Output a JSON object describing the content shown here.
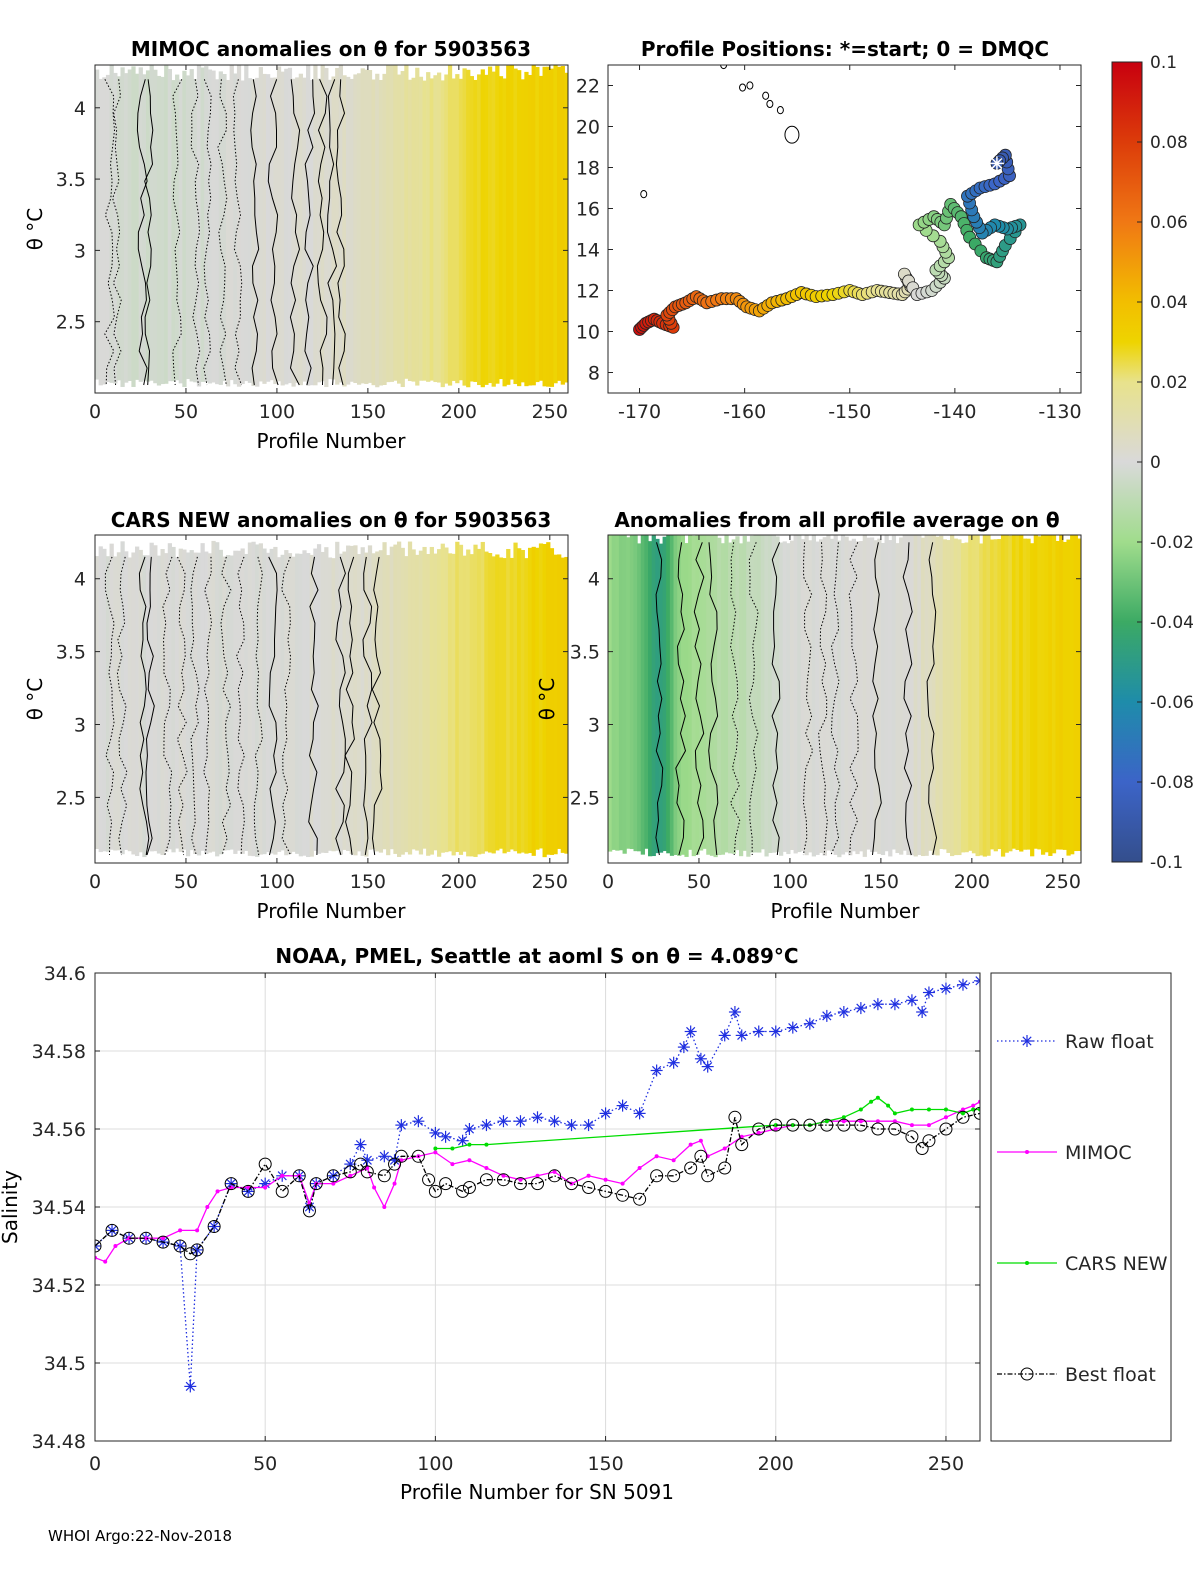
{
  "footer": {
    "credit": "WHOI Argo:22-Nov-2018"
  },
  "colorbar": {
    "ticks": [
      "0.1",
      "0.08",
      "0.06",
      "0.04",
      "0.02",
      "0",
      "-0.02",
      "-0.04",
      "-0.06",
      "-0.08",
      "-0.1"
    ],
    "range": [
      -0.1,
      0.1
    ]
  },
  "chart_data": [
    {
      "id": "mimoc",
      "type": "heatmap",
      "title": "MIMOC anomalies on θ  for 5903563",
      "xlabel": "Profile Number",
      "ylabel": "θ °C",
      "xlim": [
        0,
        260
      ],
      "ylim": [
        2.0,
        4.3
      ],
      "xticks": [
        "0",
        "50",
        "100",
        "150",
        "200",
        "250"
      ],
      "yticks": [
        "4",
        "3.5",
        "3",
        "2.5"
      ],
      "anomaly_by_profile": {
        "x": [
          0,
          30,
          80,
          120,
          150,
          175,
          200,
          220,
          260
        ],
        "v": [
          0.0,
          -0.004,
          0.0,
          0.002,
          0.006,
          0.016,
          0.024,
          0.03,
          0.032
        ]
      }
    },
    {
      "id": "positions",
      "type": "scatter",
      "title": "Profile Positions: *=start; 0 = DMQC",
      "xlabel": "",
      "ylabel": "",
      "xlim": [
        -173,
        -128
      ],
      "ylim": [
        7,
        23
      ],
      "xticks": [
        "-170",
        "-160",
        "-150",
        "-140",
        "-130"
      ],
      "yticks": [
        "22",
        "20",
        "18",
        "16",
        "14",
        "12",
        "10",
        "8"
      ],
      "start": {
        "lon": -136,
        "lat": 18.2
      },
      "track": [
        {
          "lon": -136.0,
          "lat": 18.2
        },
        {
          "lon": -135.2,
          "lat": 18.6
        },
        {
          "lon": -134.8,
          "lat": 17.6
        },
        {
          "lon": -136.2,
          "lat": 17.2
        },
        {
          "lon": -137.6,
          "lat": 17.0
        },
        {
          "lon": -138.8,
          "lat": 16.6
        },
        {
          "lon": -138.2,
          "lat": 15.6
        },
        {
          "lon": -137.4,
          "lat": 14.8
        },
        {
          "lon": -136.2,
          "lat": 15.2
        },
        {
          "lon": -135.0,
          "lat": 15.0
        },
        {
          "lon": -133.8,
          "lat": 15.2
        },
        {
          "lon": -135.2,
          "lat": 14.2
        },
        {
          "lon": -136.0,
          "lat": 13.4
        },
        {
          "lon": -137.0,
          "lat": 13.6
        },
        {
          "lon": -138.6,
          "lat": 14.6
        },
        {
          "lon": -139.4,
          "lat": 15.6
        },
        {
          "lon": -140.4,
          "lat": 16.2
        },
        {
          "lon": -141.0,
          "lat": 15.2
        },
        {
          "lon": -142.0,
          "lat": 15.6
        },
        {
          "lon": -143.4,
          "lat": 15.2
        },
        {
          "lon": -141.4,
          "lat": 14.4
        },
        {
          "lon": -140.6,
          "lat": 13.6
        },
        {
          "lon": -141.8,
          "lat": 13.0
        },
        {
          "lon": -141.0,
          "lat": 12.6
        },
        {
          "lon": -142.2,
          "lat": 12.0
        },
        {
          "lon": -143.6,
          "lat": 11.8
        },
        {
          "lon": -144.8,
          "lat": 12.8
        },
        {
          "lon": -144.2,
          "lat": 12.2
        },
        {
          "lon": -145.0,
          "lat": 11.8
        },
        {
          "lon": -146.2,
          "lat": 11.9
        },
        {
          "lon": -147.4,
          "lat": 12.0
        },
        {
          "lon": -148.8,
          "lat": 11.8
        },
        {
          "lon": -150.0,
          "lat": 12.0
        },
        {
          "lon": -151.6,
          "lat": 11.8
        },
        {
          "lon": -153.2,
          "lat": 11.7
        },
        {
          "lon": -154.6,
          "lat": 11.9
        },
        {
          "lon": -156.0,
          "lat": 11.6
        },
        {
          "lon": -157.4,
          "lat": 11.4
        },
        {
          "lon": -158.6,
          "lat": 11.0
        },
        {
          "lon": -159.8,
          "lat": 11.2
        },
        {
          "lon": -160.8,
          "lat": 11.6
        },
        {
          "lon": -162.2,
          "lat": 11.6
        },
        {
          "lon": -163.6,
          "lat": 11.4
        },
        {
          "lon": -164.6,
          "lat": 11.7
        },
        {
          "lon": -165.6,
          "lat": 11.4
        },
        {
          "lon": -166.6,
          "lat": 11.2
        },
        {
          "lon": -167.4,
          "lat": 10.8
        },
        {
          "lon": -166.8,
          "lat": 10.2
        },
        {
          "lon": -167.8,
          "lat": 10.4
        },
        {
          "lon": -168.6,
          "lat": 10.6
        },
        {
          "lon": -169.4,
          "lat": 10.4
        },
        {
          "lon": -170.0,
          "lat": 10.1
        }
      ],
      "islands": [
        {
          "lon": -155.5,
          "lat": 19.6
        },
        {
          "lon": -156.6,
          "lat": 20.8
        },
        {
          "lon": -157.6,
          "lat": 21.1
        },
        {
          "lon": -158.0,
          "lat": 21.5
        },
        {
          "lon": -159.5,
          "lat": 22.0
        },
        {
          "lon": -160.2,
          "lat": 21.9
        },
        {
          "lon": -162.0,
          "lat": 23.0
        },
        {
          "lon": -169.6,
          "lat": 16.7
        }
      ]
    },
    {
      "id": "cars",
      "type": "heatmap",
      "title": "CARS NEW anomalies on θ for 5903563",
      "xlabel": "Profile Number",
      "ylabel": "θ °C",
      "xlim": [
        0,
        260
      ],
      "ylim": [
        2.05,
        4.3
      ],
      "xticks": [
        "0",
        "50",
        "100",
        "150",
        "200",
        "250"
      ],
      "yticks": [
        "4",
        "3.5",
        "3",
        "2.5"
      ],
      "anomaly_by_profile": {
        "x": [
          0,
          30,
          60,
          100,
          150,
          175,
          200,
          230,
          260
        ],
        "v": [
          0.0,
          0.0,
          0.0,
          0.0,
          0.004,
          0.012,
          0.022,
          0.028,
          0.034
        ]
      }
    },
    {
      "id": "avg",
      "type": "heatmap",
      "title": "Anomalies from all profile average on θ",
      "xlabel": "Profile Number",
      "ylabel": "θ °C",
      "xlim": [
        0,
        260
      ],
      "ylim": [
        2.05,
        4.3
      ],
      "xticks": [
        "0",
        "50",
        "100",
        "150",
        "200",
        "250"
      ],
      "yticks": [
        "4",
        "3.5",
        "3",
        "2.5"
      ],
      "anomaly_by_profile": {
        "x": [
          0,
          15,
          28,
          40,
          60,
          80,
          100,
          150,
          165,
          180,
          200,
          230,
          260
        ],
        "v": [
          -0.022,
          -0.028,
          -0.05,
          -0.022,
          -0.014,
          -0.008,
          0.0,
          0.0,
          0.0,
          0.01,
          0.022,
          0.03,
          0.032
        ]
      }
    },
    {
      "id": "salinity",
      "type": "line",
      "title": "NOAA, PMEL, Seattle at aoml S on θ = 4.089°C",
      "xlabel": "Profile Number for SN 5091",
      "ylabel": "Salinity",
      "xlim": [
        0,
        260
      ],
      "ylim": [
        34.48,
        34.6
      ],
      "xticks": [
        "0",
        "50",
        "100",
        "150",
        "200",
        "250"
      ],
      "yticks": [
        "34.6",
        "34.58",
        "34.56",
        "34.54",
        "34.52",
        "34.5",
        "34.48"
      ],
      "legend": [
        "Raw float",
        "MIMOC",
        "CARS NEW",
        "Best float"
      ],
      "legend_position": "right",
      "series": [
        {
          "name": "Raw float",
          "x": [
            0,
            5,
            10,
            15,
            20,
            25,
            28,
            30,
            35,
            40,
            45,
            50,
            55,
            60,
            63,
            65,
            70,
            75,
            78,
            80,
            85,
            88,
            90,
            95,
            100,
            103,
            108,
            110,
            115,
            120,
            125,
            130,
            135,
            140,
            145,
            150,
            155,
            160,
            165,
            170,
            173,
            175,
            178,
            180,
            185,
            188,
            190,
            195,
            200,
            205,
            210,
            215,
            220,
            225,
            230,
            235,
            240,
            243,
            245,
            250,
            255,
            260
          ],
          "y": [
            34.53,
            34.534,
            34.532,
            34.532,
            34.531,
            34.53,
            34.494,
            34.529,
            34.535,
            34.546,
            34.544,
            34.546,
            34.548,
            34.548,
            34.54,
            34.546,
            34.548,
            34.551,
            34.556,
            34.552,
            34.553,
            34.552,
            34.561,
            34.562,
            34.559,
            34.558,
            34.557,
            34.56,
            34.561,
            34.562,
            34.562,
            34.563,
            34.562,
            34.561,
            34.561,
            34.564,
            34.566,
            34.564,
            34.575,
            34.577,
            34.581,
            34.585,
            34.578,
            34.576,
            34.584,
            34.59,
            34.584,
            34.585,
            34.585,
            34.586,
            34.587,
            34.589,
            34.59,
            34.591,
            34.592,
            34.592,
            34.593,
            34.59,
            34.595,
            34.596,
            34.597,
            34.598
          ]
        },
        {
          "name": "MIMOC",
          "x": [
            0,
            3,
            6,
            10,
            15,
            20,
            25,
            30,
            33,
            36,
            40,
            45,
            50,
            55,
            60,
            63,
            65,
            70,
            75,
            80,
            82,
            85,
            88,
            90,
            95,
            100,
            105,
            110,
            115,
            120,
            125,
            130,
            135,
            140,
            145,
            150,
            155,
            160,
            165,
            170,
            175,
            178,
            180,
            185,
            190,
            195,
            200,
            205,
            210,
            215,
            220,
            225,
            230,
            235,
            240,
            245,
            250,
            255,
            258,
            260
          ],
          "y": [
            34.527,
            34.526,
            34.53,
            34.532,
            34.532,
            34.532,
            34.534,
            34.534,
            34.54,
            34.544,
            34.545,
            34.545,
            34.545,
            34.548,
            34.548,
            34.541,
            34.546,
            34.546,
            34.548,
            34.55,
            34.545,
            34.54,
            34.546,
            34.552,
            34.553,
            34.554,
            34.551,
            34.552,
            34.55,
            34.548,
            34.547,
            34.548,
            34.549,
            34.546,
            34.548,
            34.547,
            34.546,
            34.55,
            34.553,
            34.552,
            34.556,
            34.557,
            34.553,
            34.555,
            34.558,
            34.559,
            34.56,
            34.561,
            34.561,
            34.562,
            34.562,
            34.562,
            34.562,
            34.562,
            34.561,
            34.561,
            34.563,
            34.565,
            34.566,
            34.567
          ]
        },
        {
          "name": "CARS NEW",
          "x": [
            100,
            105,
            110,
            115,
            200,
            205,
            210,
            215,
            220,
            225,
            228,
            230,
            233,
            235,
            240,
            245,
            250,
            255,
            258,
            260
          ],
          "y": [
            34.555,
            34.555,
            34.556,
            34.556,
            34.561,
            34.561,
            34.561,
            34.562,
            34.563,
            34.565,
            34.567,
            34.568,
            34.566,
            34.564,
            34.565,
            34.565,
            34.565,
            34.564,
            34.565,
            34.565
          ]
        },
        {
          "name": "Best float",
          "x": [
            0,
            5,
            10,
            15,
            20,
            25,
            28,
            30,
            35,
            40,
            45,
            50,
            55,
            60,
            63,
            65,
            70,
            75,
            78,
            80,
            85,
            88,
            90,
            95,
            98,
            100,
            103,
            108,
            110,
            115,
            120,
            125,
            130,
            135,
            140,
            145,
            150,
            155,
            160,
            165,
            170,
            175,
            178,
            180,
            185,
            188,
            190,
            195,
            200,
            205,
            210,
            215,
            220,
            225,
            230,
            235,
            240,
            243,
            245,
            250,
            255,
            260
          ],
          "y": [
            34.53,
            34.534,
            34.532,
            34.532,
            34.531,
            34.53,
            34.528,
            34.529,
            34.535,
            34.546,
            34.544,
            34.551,
            34.544,
            34.548,
            34.539,
            34.546,
            34.548,
            34.549,
            34.551,
            34.549,
            34.548,
            34.551,
            34.553,
            34.553,
            34.547,
            34.544,
            34.546,
            34.544,
            34.545,
            34.547,
            34.547,
            34.546,
            34.546,
            34.548,
            34.546,
            34.545,
            34.544,
            34.543,
            34.542,
            34.548,
            34.548,
            34.55,
            34.553,
            34.548,
            34.55,
            34.563,
            34.556,
            34.56,
            34.561,
            34.561,
            34.561,
            34.561,
            34.561,
            34.561,
            34.56,
            34.56,
            34.558,
            34.555,
            34.557,
            34.56,
            34.563,
            34.564
          ]
        }
      ]
    }
  ]
}
